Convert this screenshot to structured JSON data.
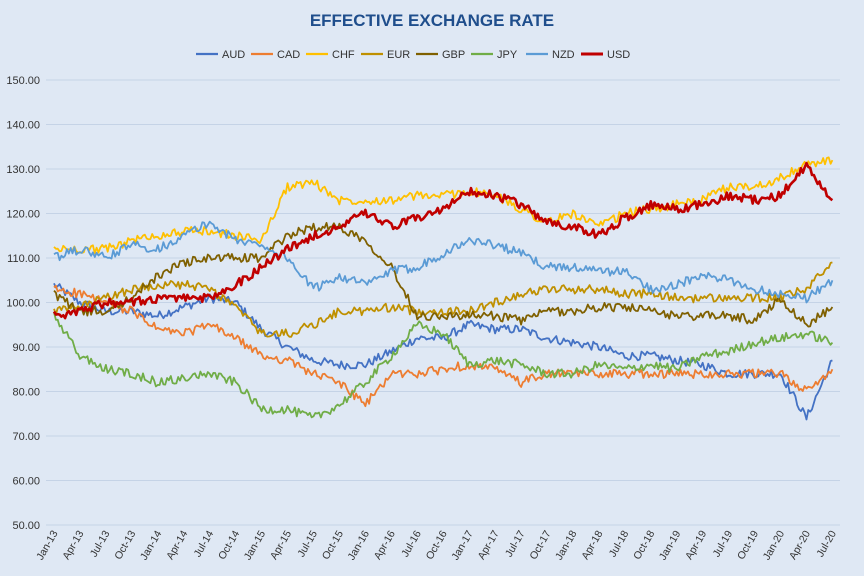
{
  "chart_data": {
    "type": "line",
    "title": "EFFECTIVE EXCHANGE RATE",
    "xlabel": "",
    "ylabel": "",
    "ylim": [
      50,
      150
    ],
    "yticks": [
      "50.00",
      "60.00",
      "70.00",
      "80.00",
      "90.00",
      "100.00",
      "110.00",
      "120.00",
      "130.00",
      "140.00",
      "150.00"
    ],
    "x": [
      "Jan-13",
      "Apr-13",
      "Jul-13",
      "Oct-13",
      "Jan-14",
      "Apr-14",
      "Jul-14",
      "Oct-14",
      "Jan-15",
      "Apr-15",
      "Jul-15",
      "Oct-15",
      "Jan-16",
      "Apr-16",
      "Jul-16",
      "Oct-16",
      "Jan-17",
      "Apr-17",
      "Jul-17",
      "Oct-17",
      "Jan-18",
      "Apr-18",
      "Jul-18",
      "Oct-18",
      "Jan-19",
      "Apr-19",
      "Jul-19",
      "Oct-19",
      "Jan-20",
      "Apr-20",
      "Jul-20"
    ],
    "legend_position": "top",
    "grid": "horizontal",
    "series": [
      {
        "name": "AUD",
        "color": "#4472c4",
        "values": [
          104,
          100,
          98,
          98,
          97,
          99,
          101,
          100,
          94,
          90,
          87,
          86,
          86,
          89,
          92,
          92,
          95,
          94,
          94,
          92,
          91,
          90,
          88,
          88,
          87,
          86,
          84,
          84,
          84,
          74,
          87
        ]
      },
      {
        "name": "CAD",
        "color": "#ed7d31",
        "values": [
          103,
          102,
          100,
          98,
          94,
          93,
          95,
          92,
          88,
          87,
          84,
          82,
          77,
          84,
          84,
          85,
          86,
          85,
          82,
          84,
          84,
          84,
          84,
          84,
          84,
          84,
          84,
          84,
          84,
          80,
          85
        ]
      },
      {
        "name": "CHF",
        "color": "#ffc000",
        "values": [
          112,
          112,
          112,
          114,
          115,
          116,
          116,
          115,
          114,
          126,
          127,
          123,
          123,
          123,
          124,
          124,
          125,
          124,
          121,
          118,
          120,
          117,
          120,
          121,
          122,
          123,
          126,
          126,
          128,
          131,
          132
        ]
      },
      {
        "name": "EUR",
        "color": "#bf9000",
        "values": [
          98,
          99,
          101,
          103,
          104,
          104,
          103,
          99,
          93,
          93,
          95,
          98,
          98,
          99,
          98,
          98,
          98,
          100,
          102,
          103,
          103,
          103,
          102,
          102,
          101,
          101,
          101,
          101,
          101,
          103,
          109
        ]
      },
      {
        "name": "GBP",
        "color": "#7f6000",
        "values": [
          102,
          98,
          98,
          101,
          106,
          109,
          110,
          110,
          110,
          115,
          117,
          117,
          114,
          108,
          97,
          97,
          97,
          97,
          96,
          98,
          98,
          99,
          99,
          98,
          97,
          97,
          97,
          96,
          101,
          95,
          99
        ]
      },
      {
        "name": "JPY",
        "color": "#70ad47",
        "values": [
          97,
          88,
          85,
          84,
          82,
          83,
          84,
          82,
          76,
          76,
          74,
          77,
          82,
          88,
          95,
          93,
          86,
          87,
          86,
          84,
          84,
          86,
          85,
          86,
          85,
          88,
          89,
          91,
          92,
          93,
          91
        ]
      },
      {
        "name": "NZD",
        "color": "#5b9bd5",
        "values": [
          110,
          112,
          110,
          113,
          112,
          115,
          118,
          114,
          113,
          110,
          103,
          106,
          104,
          107,
          108,
          111,
          114,
          113,
          111,
          108,
          108,
          107,
          107,
          103,
          104,
          106,
          105,
          103,
          102,
          101,
          105
        ]
      },
      {
        "name": "USD",
        "color": "#c00000",
        "values": [
          97,
          98,
          100,
          100,
          101,
          101,
          101,
          104,
          108,
          112,
          115,
          117,
          120,
          117,
          119,
          121,
          125,
          124,
          122,
          118,
          117,
          115,
          119,
          122,
          121,
          122,
          124,
          123,
          124,
          131,
          123
        ]
      }
    ]
  }
}
